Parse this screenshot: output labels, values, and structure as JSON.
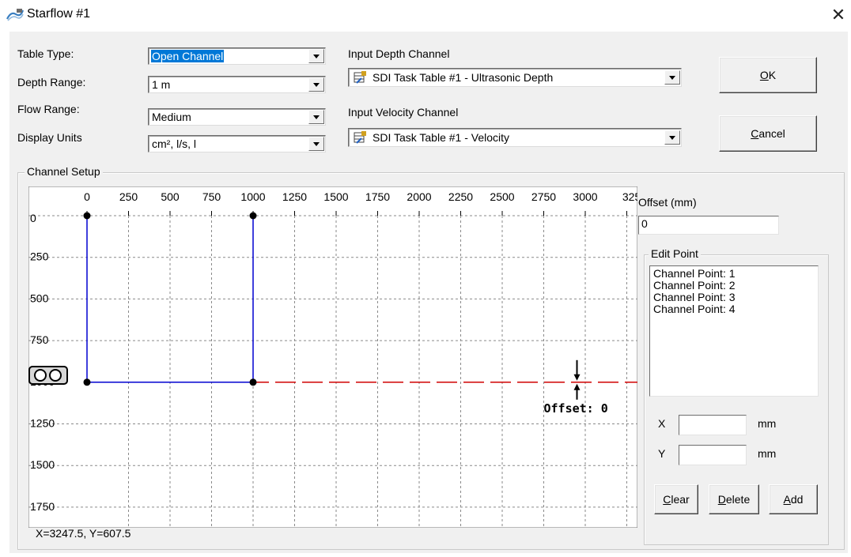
{
  "window": {
    "title": "Starflow #1",
    "close_glyph": "✕"
  },
  "labels": {
    "table_type": "Table Type:",
    "depth_range": "Depth Range:",
    "flow_range": "Flow Range:",
    "display_units": "Display Units",
    "input_depth_channel": "Input Depth Channel",
    "input_velocity_channel": "Input Velocity Channel"
  },
  "fields": {
    "table_type": "Open Channel",
    "depth_range": "1 m",
    "flow_range": "Medium",
    "display_units": "cm², l/s, l",
    "depth_channel": "SDI Task Table #1 - Ultrasonic Depth",
    "velocity_channel": "SDI Task Table #1 - Velocity"
  },
  "buttons": {
    "ok": "OK",
    "cancel": "Cancel",
    "clear": "Clear",
    "delete": "Delete",
    "add": "Add"
  },
  "channel_setup": {
    "title": "Channel Setup",
    "offset_label": "Offset (mm)",
    "offset_value": "0",
    "edit_point_title": "Edit Point",
    "points": [
      "Channel Point: 1",
      "Channel Point: 2",
      "Channel Point: 3",
      "Channel Point: 4"
    ],
    "x_label": "X",
    "y_label": "Y",
    "x_value": "",
    "y_value": "",
    "unit": "mm",
    "coordinates": "X=3247.5, Y=607.5"
  },
  "chart_data": {
    "type": "line",
    "x_ticks": [
      "0",
      "250",
      "500",
      "750",
      "1000",
      "1250",
      "1500",
      "1750",
      "2000",
      "2250",
      "2500",
      "2750",
      "3000",
      "325"
    ],
    "y_ticks": [
      "0",
      "250",
      "500",
      "750",
      "1000",
      "1250",
      "1500",
      "1750"
    ],
    "xlim": [
      -250,
      3250
    ],
    "ylim": [
      0,
      1750
    ],
    "grid": true,
    "series": [
      {
        "x": [
          0,
          0,
          1000,
          1000
        ],
        "y": [
          0,
          1000,
          1000,
          0
        ],
        "color": "#0000d0"
      }
    ],
    "level_line": {
      "y": 1000,
      "color": "#d00000"
    },
    "annotation": {
      "text": "Offset: 0",
      "x": 2950
    }
  }
}
